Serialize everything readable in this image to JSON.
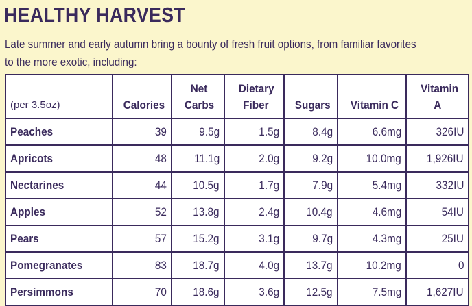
{
  "title": "HEALTHY HARVEST",
  "intro": "Late summer and early autumn bring a bounty of fresh fruit options, from familiar favorites to the more exotic, including:",
  "table": {
    "headers": {
      "serving": "(per 3.5oz)",
      "calories": "Calories",
      "carbs_line1": "Net",
      "carbs_line2": "Carbs",
      "fiber_line1": "Dietary",
      "fiber_line2": "Fiber",
      "sugars": "Sugars",
      "vitc": "Vitamin C",
      "vita_line1": "Vitamin",
      "vita_line2": "A"
    },
    "rows": [
      {
        "fruit": "Peaches",
        "calories": "39",
        "carbs": "9.5g",
        "fiber": "1.5g",
        "sugars": "8.4g",
        "vitc": "6.6mg",
        "vita": "326IU"
      },
      {
        "fruit": "Apricots",
        "calories": "48",
        "carbs": "11.1g",
        "fiber": "2.0g",
        "sugars": "9.2g",
        "vitc": "10.0mg",
        "vita": "1,926IU"
      },
      {
        "fruit": "Nectarines",
        "calories": "44",
        "carbs": "10.5g",
        "fiber": "1.7g",
        "sugars": "7.9g",
        "vitc": "5.4mg",
        "vita": "332IU"
      },
      {
        "fruit": "Apples",
        "calories": "52",
        "carbs": "13.8g",
        "fiber": "2.4g",
        "sugars": "10.4g",
        "vitc": "4.6mg",
        "vita": "54IU"
      },
      {
        "fruit": "Pears",
        "calories": "57",
        "carbs": "15.2g",
        "fiber": "3.1g",
        "sugars": "9.7g",
        "vitc": "4.3mg",
        "vita": "25IU"
      },
      {
        "fruit": "Pomegranates",
        "calories": "83",
        "carbs": "18.7g",
        "fiber": "4.0g",
        "sugars": "13.7g",
        "vitc": "10.2mg",
        "vita": "0"
      },
      {
        "fruit": "Persimmons",
        "calories": "70",
        "carbs": "18.6g",
        "fiber": "3.6g",
        "sugars": "12.5g",
        "vitc": "7.5mg",
        "vita": "1,627IU"
      }
    ]
  },
  "colors": {
    "background": "#fbf6cc",
    "text": "#3a2a5c",
    "table_bg": "#ffffff"
  }
}
